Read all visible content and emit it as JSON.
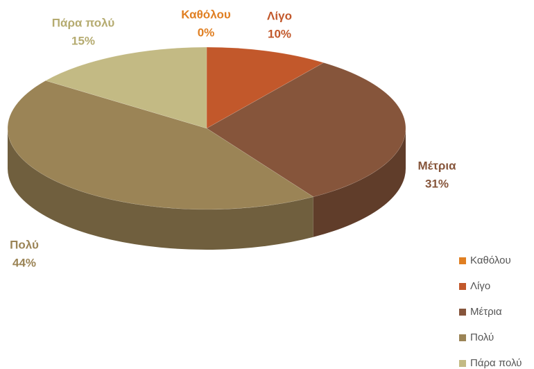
{
  "chart_data": {
    "type": "pie3d",
    "categories": [
      "Καθόλου",
      "Λίγο",
      "Μέτρια",
      "Πολύ",
      "Πάρα πολύ"
    ],
    "values": [
      0,
      10,
      31,
      44,
      15
    ],
    "value_labels": [
      "0%",
      "10%",
      "31%",
      "44%",
      "15%"
    ],
    "colors": [
      "#e07f22",
      "#c2582b",
      "#86553b",
      "#9b8456",
      "#c3ba84"
    ],
    "legend": "right-bottom"
  }
}
